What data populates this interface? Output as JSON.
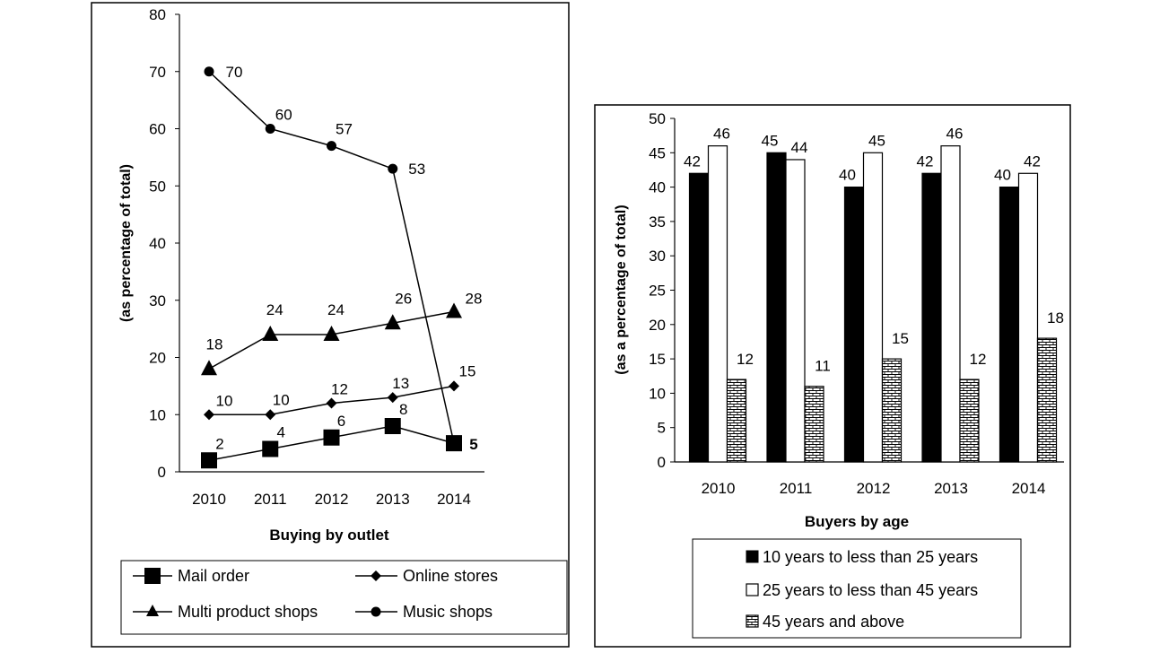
{
  "chart_data": [
    {
      "type": "line",
      "title": "",
      "xlabel": "Buying by outlet",
      "ylabel": "(as percentage of total)",
      "ylim": [
        0,
        80
      ],
      "yticks": [
        0,
        10,
        20,
        30,
        40,
        50,
        60,
        70,
        80
      ],
      "categories": [
        "2010",
        "2011",
        "2012",
        "2013",
        "2014"
      ],
      "grid": false,
      "legend_position": "bottom",
      "series": [
        {
          "name": "Mail order",
          "marker": "square",
          "values": [
            2,
            4,
            6,
            8,
            5
          ],
          "labels": [
            "2",
            "4",
            "6",
            "8",
            "5"
          ]
        },
        {
          "name": "Online stores",
          "marker": "diamond",
          "values": [
            10,
            10,
            12,
            13,
            15
          ],
          "labels": [
            "10",
            "10",
            "12",
            "13",
            "15"
          ]
        },
        {
          "name": "Multi product shops",
          "marker": "triangle",
          "values": [
            18,
            24,
            24,
            26,
            28
          ],
          "labels": [
            "18",
            "24",
            "24",
            "26",
            "28"
          ]
        },
        {
          "name": "Music shops",
          "marker": "circle",
          "values": [
            70,
            60,
            57,
            53,
            5
          ],
          "labels": [
            "70",
            "60",
            "57",
            "53",
            ""
          ]
        }
      ]
    },
    {
      "type": "bar",
      "title": "",
      "xlabel": "Buyers by age",
      "ylabel": "(as a percentage of total)",
      "ylim": [
        0,
        50
      ],
      "yticks": [
        0,
        5,
        10,
        15,
        20,
        25,
        30,
        35,
        40,
        45,
        50
      ],
      "categories": [
        "2010",
        "2011",
        "2012",
        "2013",
        "2014"
      ],
      "grid": false,
      "legend_position": "bottom",
      "series": [
        {
          "name": "10 years to less than 25 years",
          "fill": "solid",
          "color": "#000000",
          "values": [
            42,
            45,
            40,
            42,
            40
          ]
        },
        {
          "name": "25 years to less than 45 years",
          "fill": "hollow",
          "color": "#ffffff",
          "values": [
            46,
            44,
            45,
            46,
            42
          ]
        },
        {
          "name": "45 years and above",
          "fill": "brick",
          "color": "#ffffff",
          "values": [
            12,
            11,
            15,
            12,
            18
          ]
        }
      ]
    }
  ]
}
